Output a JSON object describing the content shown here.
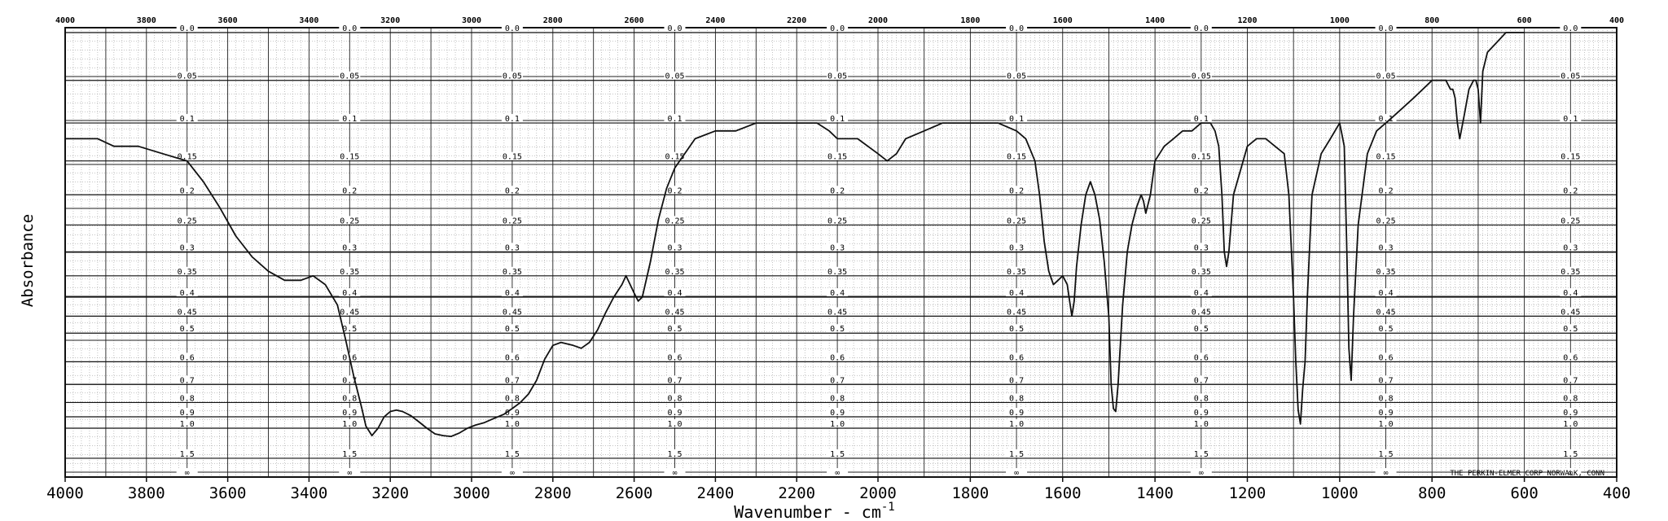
{
  "chart_data": {
    "type": "line",
    "title": "",
    "xlabel": "Wavenumber - cm",
    "xlabel_sup": "-1",
    "ylabel": "Absorbance",
    "xlim": [
      4000,
      400
    ],
    "ylim": [
      0,
      1.6
    ],
    "grid": true,
    "legend": "none",
    "bottom_ticks": [
      "4000",
      "3800",
      "3600",
      "3400",
      "3200",
      "3000",
      "2800",
      "2600",
      "2400",
      "2200",
      "2000",
      "1800",
      "1600",
      "1400",
      "1200",
      "1000",
      "800",
      "600",
      "400"
    ],
    "top_ticks": [
      "4000",
      "3800",
      "3600",
      "3400",
      "3200",
      "3000",
      "2800",
      "2600",
      "2400",
      "2200",
      "2000",
      "1800",
      "1600",
      "1400",
      "1200",
      "1000",
      "800",
      "600",
      "400"
    ],
    "absorbance_scale_labels": [
      "0.0",
      "0.05",
      "0.1",
      "0.15",
      "0.2",
      "0.25",
      "0.3",
      "0.35",
      "0.4",
      "0.45",
      "0.5",
      "0.6",
      "0.7",
      "0.8",
      "0.9",
      "1.0",
      "1.5",
      "∞"
    ],
    "absorbance_scale_at_wavenumber": [
      3700,
      3300,
      2900,
      2500,
      2100,
      1700,
      1300,
      900,
      500
    ],
    "footer_note": "THE PERKIN-ELMER CORP  NORWALK, CONN",
    "series": [
      {
        "x": [
          4000,
          3920,
          3880,
          3820,
          3760,
          3700,
          3660,
          3620,
          3580,
          3540,
          3500,
          3460,
          3420,
          3390,
          3360,
          3330,
          3310,
          3290,
          3270,
          3260,
          3245,
          3230,
          3215,
          3200,
          3185,
          3170,
          3150,
          3130,
          3110,
          3090,
          3070,
          3050,
          3030,
          3010,
          2990,
          2970,
          2950,
          2920,
          2900,
          2880,
          2860,
          2840,
          2820,
          2800,
          2780,
          2750,
          2730,
          2710,
          2690,
          2670,
          2650,
          2630,
          2620,
          2600,
          2590,
          2580,
          2560,
          2540,
          2520,
          2500,
          2450,
          2400,
          2350,
          2300,
          2250,
          2200,
          2150,
          2120,
          2100,
          2080,
          2050,
          2000,
          1980,
          1960,
          1940,
          1900,
          1860,
          1830,
          1800,
          1780,
          1740,
          1700,
          1680,
          1660,
          1650,
          1640,
          1630,
          1620,
          1610,
          1600,
          1590,
          1585,
          1580,
          1575,
          1570,
          1560,
          1550,
          1540,
          1530,
          1520,
          1510,
          1500,
          1495,
          1490,
          1485,
          1480,
          1470,
          1460,
          1450,
          1440,
          1435,
          1430,
          1425,
          1420,
          1410,
          1400,
          1380,
          1360,
          1340,
          1320,
          1300,
          1290,
          1280,
          1270,
          1262,
          1255,
          1250,
          1245,
          1240,
          1230,
          1200,
          1180,
          1160,
          1140,
          1120,
          1110,
          1100,
          1095,
          1090,
          1085,
          1080,
          1075,
          1070,
          1060,
          1040,
          1020,
          1000,
          990,
          985,
          980,
          975,
          970,
          960,
          940,
          920,
          900,
          880,
          860,
          840,
          820,
          800,
          780,
          770,
          760,
          755,
          750,
          745,
          740,
          730,
          720,
          710,
          705,
          700,
          695,
          690,
          680,
          660,
          640,
          620,
          600
        ],
        "y": [
          0.12,
          0.12,
          0.13,
          0.13,
          0.14,
          0.15,
          0.18,
          0.22,
          0.27,
          0.31,
          0.34,
          0.36,
          0.36,
          0.35,
          0.37,
          0.42,
          0.52,
          0.66,
          0.84,
          0.98,
          1.08,
          1.0,
          0.9,
          0.86,
          0.85,
          0.86,
          0.89,
          0.94,
          1.0,
          1.06,
          1.08,
          1.09,
          1.05,
          1.0,
          0.97,
          0.95,
          0.92,
          0.88,
          0.84,
          0.8,
          0.75,
          0.68,
          0.59,
          0.54,
          0.53,
          0.54,
          0.55,
          0.53,
          0.49,
          0.44,
          0.4,
          0.37,
          0.35,
          0.39,
          0.41,
          0.4,
          0.32,
          0.24,
          0.19,
          0.16,
          0.12,
          0.11,
          0.11,
          0.1,
          0.1,
          0.1,
          0.1,
          0.11,
          0.12,
          0.12,
          0.12,
          0.14,
          0.15,
          0.14,
          0.12,
          0.11,
          0.1,
          0.1,
          0.1,
          0.1,
          0.1,
          0.11,
          0.12,
          0.15,
          0.2,
          0.28,
          0.34,
          0.37,
          0.36,
          0.35,
          0.37,
          0.41,
          0.45,
          0.41,
          0.33,
          0.25,
          0.2,
          0.18,
          0.2,
          0.24,
          0.32,
          0.45,
          0.7,
          0.84,
          0.86,
          0.7,
          0.42,
          0.3,
          0.25,
          0.22,
          0.21,
          0.2,
          0.21,
          0.23,
          0.2,
          0.15,
          0.13,
          0.12,
          0.11,
          0.11,
          0.1,
          0.1,
          0.1,
          0.11,
          0.13,
          0.2,
          0.3,
          0.33,
          0.3,
          0.2,
          0.13,
          0.12,
          0.12,
          0.13,
          0.14,
          0.2,
          0.4,
          0.6,
          0.85,
          0.96,
          0.72,
          0.6,
          0.4,
          0.2,
          0.14,
          0.12,
          0.1,
          0.13,
          0.28,
          0.55,
          0.68,
          0.45,
          0.25,
          0.14,
          0.11,
          0.1,
          0.09,
          0.08,
          0.07,
          0.06,
          0.05,
          0.05,
          0.05,
          0.06,
          0.06,
          0.07,
          0.1,
          0.12,
          0.09,
          0.06,
          0.05,
          0.05,
          0.06,
          0.1,
          0.04,
          0.02,
          0.01,
          0.0,
          0.0,
          0.0
        ]
      }
    ]
  }
}
